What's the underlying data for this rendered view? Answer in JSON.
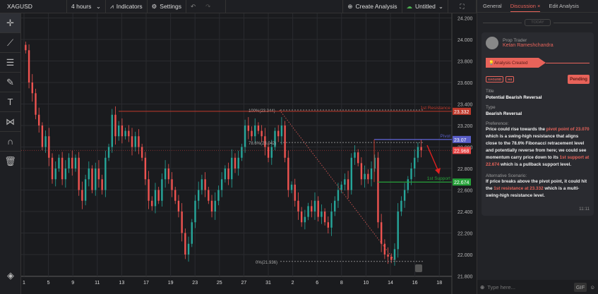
{
  "toolbar": {
    "symbol": "XAGUSD",
    "interval": "4 hours",
    "indicators": "Indicators",
    "settings": "Settings",
    "create_analysis": "Create Analysis",
    "layout_name": "Untitled"
  },
  "left_tools": [
    "crosshair-icon",
    "trendline-icon",
    "fib-lines-icon",
    "brush-icon",
    "text-icon",
    "pattern-icon",
    "magnet-icon",
    "trash-icon"
  ],
  "chart_data": {
    "type": "candlestick",
    "y_ticks": [
      "24.200",
      "24.000",
      "23.800",
      "23.600",
      "23.400",
      "23.200",
      "23.000",
      "22.800",
      "22.600",
      "22.400",
      "22.200",
      "22.000",
      "21.800"
    ],
    "ylim": [
      21.8,
      24.2
    ],
    "x_ticks": [
      "1",
      "5",
      "9",
      "11",
      "13",
      "17",
      "19",
      "23",
      "25",
      "27",
      "31",
      "2",
      "6",
      "8",
      "10",
      "14",
      "16",
      "18"
    ],
    "closes": [
      23.9,
      23.6,
      23.5,
      23.3,
      23.2,
      23.0,
      23.1,
      22.9,
      22.7,
      22.8,
      22.9,
      22.7,
      22.8,
      22.9,
      22.8,
      22.9,
      22.6,
      22.5,
      22.7,
      22.8,
      22.6,
      22.8,
      22.7,
      22.6,
      22.9,
      23.0,
      23.3,
      23.1,
      23.2,
      23.1,
      23.15,
      23.1,
      23.0,
      23.1,
      23.0,
      22.9,
      22.7,
      22.5,
      22.45,
      22.6,
      22.5,
      22.7,
      22.8,
      22.7,
      22.6,
      22.5,
      22.4,
      22.2,
      22.0,
      22.1,
      22.3,
      22.5,
      22.6,
      22.7,
      22.6,
      22.5,
      22.4,
      22.5,
      22.6,
      22.7,
      22.8,
      22.7,
      22.9,
      22.8,
      22.9,
      23.0,
      23.2,
      23.15,
      23.1,
      23.2,
      23.15,
      23.1,
      23.0,
      22.9,
      23.0,
      23.15,
      23.1,
      23.2,
      22.9,
      22.6,
      22.65,
      22.5,
      22.4,
      22.3,
      22.35,
      22.45,
      22.4,
      22.5,
      22.35,
      22.4,
      22.3,
      22.25,
      22.4,
      22.5,
      22.6,
      22.65,
      22.7,
      22.6,
      22.9,
      22.95,
      22.85,
      22.7,
      22.75,
      22.7,
      22.8,
      22.9,
      22.3,
      22.1,
      22.0,
      21.98,
      21.95,
      22.05,
      22.4,
      22.5,
      22.6,
      22.7,
      22.8,
      22.9,
      23.0,
      22.97
    ],
    "levels": [
      {
        "label": "1st Resistance",
        "value": 23.332,
        "tag": "23.332",
        "color": "#c0392b"
      },
      {
        "label": "Pivot",
        "value": 23.07,
        "tag": "23.07",
        "color": "#5a5fc8"
      },
      {
        "label": "1st Support",
        "value": 22.674,
        "tag": "22.674",
        "color": "#27a33a"
      }
    ],
    "current_price": {
      "value": 22.968,
      "tag": "22.968",
      "color": "#e84545"
    },
    "fib": [
      {
        "label": "100%(23.344)",
        "value": 23.344
      },
      {
        "label": "78.6%(23.042)",
        "value": 23.042
      },
      {
        "label": "0%(21.936)",
        "value": 21.936
      }
    ],
    "up_color": "#26a69a",
    "down_color": "#ef5350"
  },
  "panel": {
    "tabs": [
      "General",
      "Discussion",
      "Edit Analysis"
    ],
    "active_tab": "Discussion",
    "date_sep": "TODAY",
    "role": "Prop Trader",
    "author": "Ketan Rameshchandra",
    "event": "Analysis Created",
    "chips": [
      "XAGUSD",
      "H4"
    ],
    "status": "Pending",
    "title_label": "Title",
    "title": "Potential Bearish Reversal",
    "type_label": "Type",
    "type": "Bearish Reversal",
    "pref_label": "Preference:",
    "pref": [
      "Price could rise towards the ",
      "pivot point of 23.070",
      " which is a swing-high resistance that aligns close to the 78.6% Fibonacci retracement level and potentially reverse from here; we could see momentum carry price down to its ",
      "1st support at 22.674",
      " which is a pullback support level."
    ],
    "alt_label": "Alternative Scenario:",
    "alt": [
      "If price breaks above the pivot point, it could hit the ",
      "1st resistance at 23.332",
      " which is a multi-swing-high resistance level."
    ],
    "time": "11:11",
    "input_placeholder": "Type here...",
    "gif": "GIF"
  },
  "colors": {
    "accent": "#e8635a",
    "bg": "#1e1f23"
  }
}
